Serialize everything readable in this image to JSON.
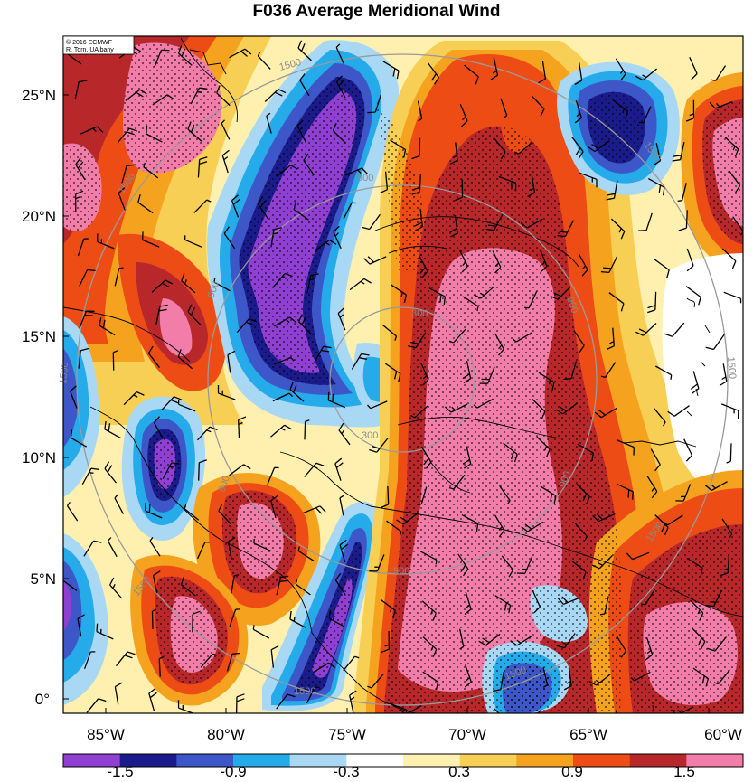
{
  "title": "F036 Average Meridional Wind",
  "credit": {
    "line1": "© 2016 ECMWF",
    "line2": "R. Torn, UAlbany"
  },
  "lat_ticks": [
    "25°N",
    "20°N",
    "15°N",
    "10°N",
    "5°N",
    "0°"
  ],
  "lon_ticks": [
    "85°W",
    "80°W",
    "75°W",
    "70°W",
    "65°W",
    "60°W"
  ],
  "colorbar": {
    "labels": [
      "-1.5",
      "-0.9",
      "-0.3",
      "0.3",
      "0.9",
      "1.5"
    ],
    "colors": [
      "#8f3fd1",
      "#1b1b8c",
      "#3d57c9",
      "#25aaea",
      "#a9d8f5",
      "#ffffff",
      "#fff0b0",
      "#f8cf55",
      "#f5a21f",
      "#ee4c15",
      "#b8282b",
      "#f27da8"
    ]
  },
  "range_rings": [
    "300",
    "900",
    "1500"
  ],
  "map_colors": {
    "purple": "#8f3fd1",
    "navy": "#1b1b8c",
    "blue": "#3d57c9",
    "cyan": "#25aaea",
    "lightblue": "#a9d8f5",
    "white": "#ffffff",
    "cream": "#fff0b0",
    "yellow": "#f8cf55",
    "orange": "#f5a21f",
    "redorange": "#ee4c15",
    "darkred": "#b8282b",
    "pink": "#f27da8"
  }
}
